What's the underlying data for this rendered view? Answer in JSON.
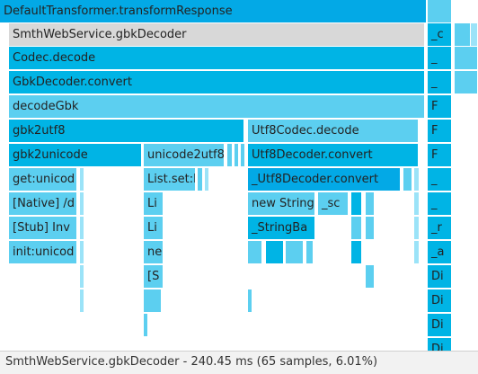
{
  "colors": {
    "base": "#00b4e5",
    "deep": "#03a9e6",
    "light": "#5ccff0",
    "pale": "#9be3f8",
    "selected": "#d8d8d8"
  },
  "frames": [
    {
      "label": "DefaultTransformer.transformResponse",
      "tone": "deep"
    },
    {
      "label": "",
      "tone": "light"
    },
    {
      "label": "SmthWebService.gbkDecoder",
      "tone": "selected"
    },
    {
      "label": "_c",
      "tone": "base"
    },
    {
      "label": "",
      "tone": "light"
    },
    {
      "label": "",
      "tone": "pale"
    },
    {
      "label": "Codec.decode",
      "tone": "base"
    },
    {
      "label": "_",
      "tone": "base"
    },
    {
      "label": "",
      "tone": "light"
    },
    {
      "label": "GbkDecoder.convert",
      "tone": "base"
    },
    {
      "label": "_",
      "tone": "base"
    },
    {
      "label": "",
      "tone": "light"
    },
    {
      "label": "decodeGbk",
      "tone": "light"
    },
    {
      "label": "F",
      "tone": "base"
    },
    {
      "label": "gbk2utf8",
      "tone": "base"
    },
    {
      "label": "Utf8Codec.decode",
      "tone": "light"
    },
    {
      "label": "F",
      "tone": "base"
    },
    {
      "label": "gbk2unicode",
      "tone": "base"
    },
    {
      "label": "unicode2utf8",
      "tone": "light"
    },
    {
      "label": "",
      "tone": "light"
    },
    {
      "label": "",
      "tone": "light"
    },
    {
      "label": "",
      "tone": "light"
    },
    {
      "label": "Utf8Decoder.convert",
      "tone": "base"
    },
    {
      "label": "F",
      "tone": "base"
    },
    {
      "label": "get:unicod",
      "tone": "light"
    },
    {
      "label": "",
      "tone": "pale"
    },
    {
      "label": "List.set:l",
      "tone": "light"
    },
    {
      "label": "",
      "tone": "light"
    },
    {
      "label": "",
      "tone": "pale"
    },
    {
      "label": "_Utf8Decoder.convert",
      "tone": "deep"
    },
    {
      "label": "",
      "tone": "light"
    },
    {
      "label": "",
      "tone": "pale"
    },
    {
      "label": "_",
      "tone": "base"
    },
    {
      "label": "[Native] /d",
      "tone": "light"
    },
    {
      "label": "",
      "tone": "pale"
    },
    {
      "label": "Li",
      "tone": "light"
    },
    {
      "label": "new String",
      "tone": "light"
    },
    {
      "label": "_sc",
      "tone": "light"
    },
    {
      "label": "",
      "tone": "base"
    },
    {
      "label": "",
      "tone": "light"
    },
    {
      "label": "",
      "tone": "pale"
    },
    {
      "label": "_",
      "tone": "base"
    },
    {
      "label": "[Stub] Inv",
      "tone": "light"
    },
    {
      "label": "",
      "tone": "pale"
    },
    {
      "label": "Li",
      "tone": "light"
    },
    {
      "label": "_StringBa",
      "tone": "base"
    },
    {
      "label": "",
      "tone": "light"
    },
    {
      "label": "",
      "tone": "light"
    },
    {
      "label": "",
      "tone": "pale"
    },
    {
      "label": "_r",
      "tone": "base"
    },
    {
      "label": "init:unicod",
      "tone": "light"
    },
    {
      "label": "",
      "tone": "pale"
    },
    {
      "label": "ne",
      "tone": "light"
    },
    {
      "label": "",
      "tone": "light"
    },
    {
      "label": "",
      "tone": "base"
    },
    {
      "label": "",
      "tone": "light"
    },
    {
      "label": "",
      "tone": "light"
    },
    {
      "label": "",
      "tone": "base"
    },
    {
      "label": "",
      "tone": "pale"
    },
    {
      "label": "_a",
      "tone": "base"
    },
    {
      "label": "",
      "tone": "pale"
    },
    {
      "label": "[S",
      "tone": "light"
    },
    {
      "label": "",
      "tone": "light"
    },
    {
      "label": "Di",
      "tone": "base"
    },
    {
      "label": "",
      "tone": "pale"
    },
    {
      "label": "",
      "tone": "light"
    },
    {
      "label": "",
      "tone": "light"
    },
    {
      "label": "Di",
      "tone": "base"
    },
    {
      "label": "",
      "tone": "light"
    },
    {
      "label": "Di",
      "tone": "base"
    },
    {
      "label": "Di",
      "tone": "base"
    }
  ],
  "status": {
    "text": "SmthWebService.gbkDecoder - 240.45 ms (65 samples, 6.01%)"
  }
}
